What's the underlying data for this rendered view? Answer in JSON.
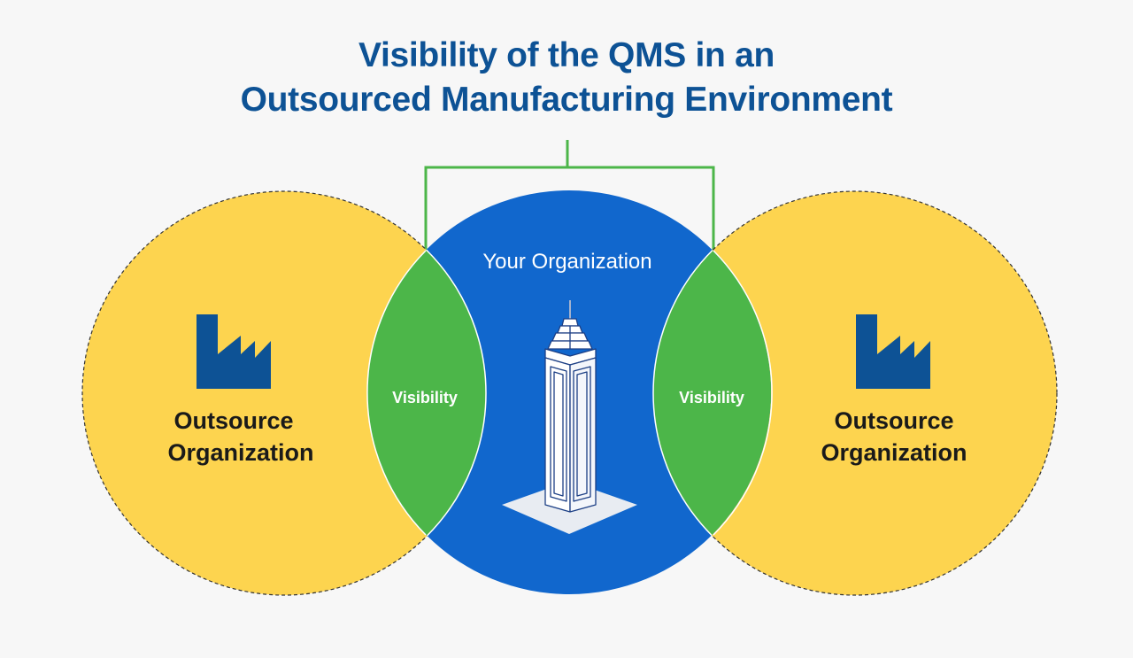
{
  "title": {
    "line1": "Visibility of the QMS in an",
    "line2": "Outsourced Manufacturing Environment"
  },
  "center": {
    "label": "Your Organization",
    "icon": "skyscraper-icon"
  },
  "left": {
    "label_line1": "Outsource",
    "label_line2": "Organization",
    "icon": "factory-icon"
  },
  "right": {
    "label_line1": "Outsource",
    "label_line2": "Organization",
    "icon": "factory-icon"
  },
  "overlaps": {
    "left_label": "Visibility",
    "right_label": "Visibility"
  },
  "colors": {
    "yellow": "#fdd44f",
    "blue": "#1167cd",
    "green": "#4cb649",
    "navy": "#0d5295"
  }
}
